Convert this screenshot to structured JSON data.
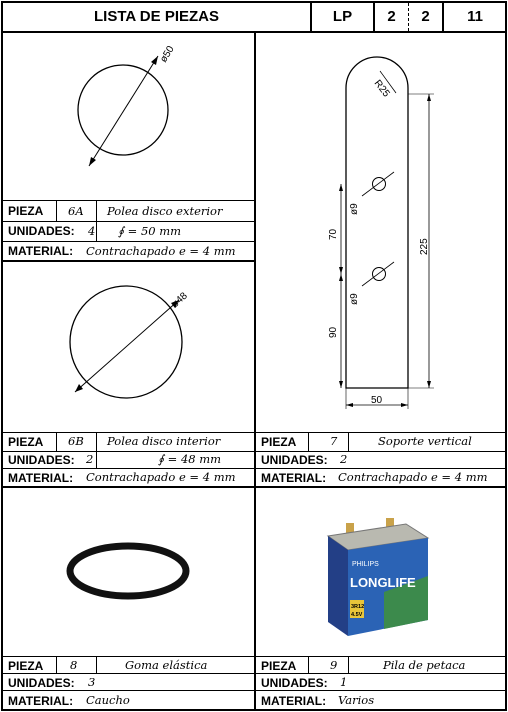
{
  "header": {
    "title": "LISTA DE PIEZAS",
    "code": "LP",
    "n1": "2",
    "n2": "2",
    "n3": "11"
  },
  "labels": {
    "pieza": "PIEZA",
    "unidades": "UNIDADES:",
    "material": "MATERIAL:"
  },
  "pieces": [
    {
      "id": "6A",
      "name": "Polea disco exterior",
      "units": "4",
      "extra": "∮ = 50 mm",
      "material": "Contrachapado e = 4 mm",
      "dim": "ø50"
    },
    {
      "id": "6B",
      "name": "Polea disco interior",
      "units": "2",
      "extra": "∮ = 48 mm",
      "material": "Contrachapado e = 4 mm",
      "dim": "ø48"
    },
    {
      "id": "7",
      "name": "Soporte vertical",
      "units": "2",
      "material": "Contrachapado e = 4 mm",
      "dims": {
        "radius": "R25",
        "hole1": "ø9",
        "hole2": "ø9",
        "d70": "70",
        "d90": "90",
        "d225": "225",
        "width": "50"
      }
    },
    {
      "id": "8",
      "name": "Goma elástica",
      "units": "3",
      "material": "Caucho"
    },
    {
      "id": "9",
      "name": "Pila de petaca",
      "units": "1",
      "material": "Varios",
      "battery": {
        "brand": "PHILIPS",
        "product": "LONGLIFE",
        "model": "3R12",
        "voltage": "4.5V"
      }
    }
  ]
}
